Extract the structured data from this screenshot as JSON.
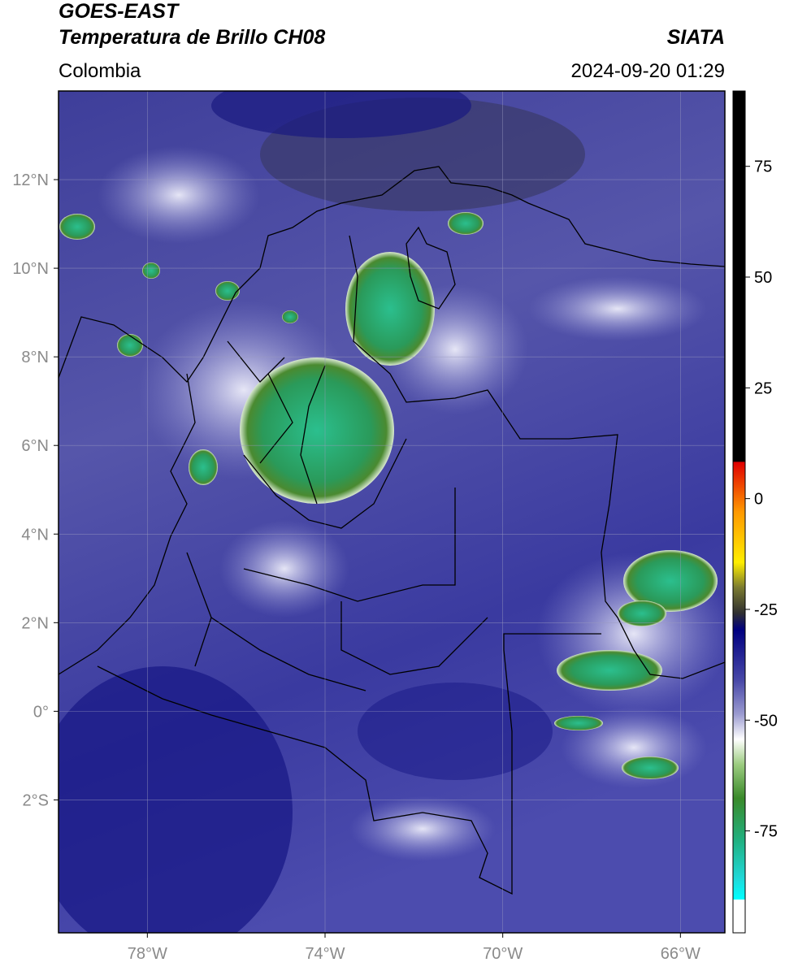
{
  "header": {
    "satellite": "GOES-EAST",
    "product": "Temperatura de Brillo CH08",
    "region": "Colombia",
    "source": "SIATA",
    "datetime": "2024-09-20 01:29"
  },
  "map": {
    "xlim": [
      -80,
      -65
    ],
    "ylim": [
      -5,
      14
    ],
    "xticks": [
      {
        "value": -78,
        "label": "78°W"
      },
      {
        "value": -74,
        "label": "74°W"
      },
      {
        "value": -70,
        "label": "70°W"
      },
      {
        "value": -66,
        "label": "66°W"
      }
    ],
    "yticks": [
      {
        "value": 12,
        "label": "12°N"
      },
      {
        "value": 10,
        "label": "10°N"
      },
      {
        "value": 8,
        "label": "8°N"
      },
      {
        "value": 6,
        "label": "6°N"
      },
      {
        "value": 4,
        "label": "4°N"
      },
      {
        "value": 2,
        "label": "2°N"
      },
      {
        "value": 0,
        "label": "0°"
      },
      {
        "value": -2,
        "label": "2°S"
      }
    ],
    "grid": true
  },
  "colorbar": {
    "lim": [
      -98,
      92
    ],
    "ticks": [
      75,
      50,
      25,
      0,
      -25,
      -50,
      -75
    ]
  }
}
